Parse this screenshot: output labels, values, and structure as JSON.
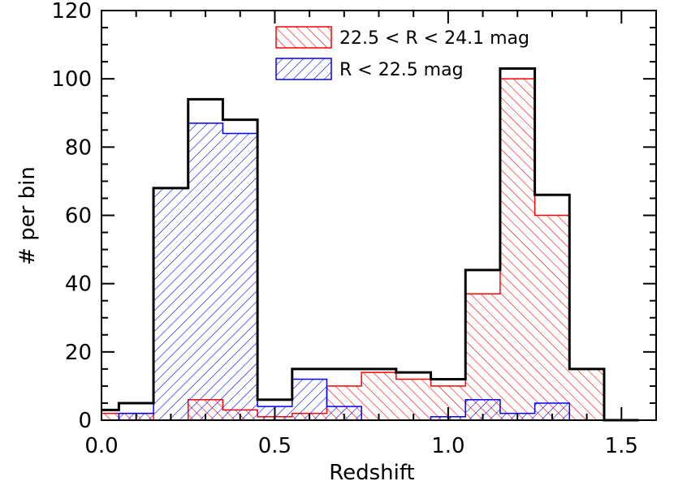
{
  "chart_data": {
    "type": "bar",
    "histogram": true,
    "xlabel": "Redshift",
    "ylabel": "# per bin",
    "xlim": [
      0.0,
      1.6
    ],
    "ylim": [
      0,
      120
    ],
    "x_ticks": [
      "0.0",
      "0.5",
      "1.0",
      "1.5"
    ],
    "y_ticks": [
      "0",
      "20",
      "40",
      "60",
      "80",
      "100",
      "120"
    ],
    "bin_edges": [
      0.0,
      0.05,
      0.15,
      0.25,
      0.35,
      0.45,
      0.55,
      0.65,
      0.75,
      0.85,
      0.95,
      1.05,
      1.15,
      1.25,
      1.35,
      1.45,
      1.55
    ],
    "series": [
      {
        "name": "22.5 < R < 24.1 mag",
        "color": "#ff0000",
        "hatch": "forward-diagonal",
        "values": [
          2,
          2,
          0,
          6,
          3,
          1,
          2,
          10,
          14,
          12,
          10,
          37,
          100,
          60,
          15,
          0
        ]
      },
      {
        "name": "R < 22.5 mag",
        "color": "#0000ff",
        "hatch": "backward-diagonal",
        "values": [
          0,
          2,
          68,
          87,
          84,
          4,
          12,
          4,
          0,
          0,
          1,
          6,
          2,
          5,
          0,
          0
        ]
      },
      {
        "name": "total",
        "color": "#000000",
        "values": [
          3,
          5,
          68,
          94,
          88,
          6,
          15,
          15,
          15,
          14,
          12,
          44,
          103,
          66,
          15,
          0
        ]
      }
    ],
    "legend": {
      "position": "top-right"
    },
    "grid": false
  }
}
